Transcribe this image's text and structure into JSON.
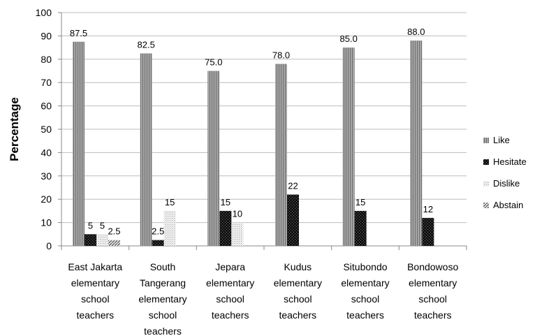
{
  "chart_data": {
    "type": "bar",
    "title": "",
    "xlabel": "",
    "ylabel": "Percentage",
    "ylim": [
      0,
      100
    ],
    "yticks": [
      0,
      10,
      20,
      30,
      40,
      50,
      60,
      70,
      80,
      90,
      100
    ],
    "grid": "horizontal",
    "legend_position": "right",
    "categories": [
      [
        "East Jakarta",
        "elementary",
        "school",
        "teachers"
      ],
      [
        "South",
        "Tangerang",
        "elementary",
        "school",
        "teachers"
      ],
      [
        "Jepara",
        "elementary",
        "school",
        "teachers"
      ],
      [
        "Kudus",
        "elementary",
        "school",
        "teachers"
      ],
      [
        "Situbondo",
        "elementary",
        "school",
        "teachers"
      ],
      [
        "Bondowoso",
        "elementary",
        "school",
        "teachers"
      ]
    ],
    "series": [
      {
        "name": "Like",
        "color": "#8c8c8c",
        "pattern": "fine-stripe",
        "values": [
          87.5,
          82.5,
          75.0,
          78.0,
          85.0,
          88.0
        ],
        "labels": [
          "87.5",
          "82.5",
          "75.0",
          "78.0",
          "85.0",
          "88.0"
        ]
      },
      {
        "name": "Hesitate",
        "color": "#1a1a1a",
        "pattern": "checker",
        "values": [
          5,
          2.5,
          15,
          22,
          15,
          12
        ],
        "labels": [
          "5",
          "2.5",
          "15",
          "22",
          "15",
          "12"
        ]
      },
      {
        "name": "Dislike",
        "color": "#e0e0e0",
        "pattern": "dots",
        "values": [
          5,
          15,
          10,
          0,
          0,
          0
        ],
        "labels": [
          "5",
          "15",
          "10",
          "",
          "",
          ""
        ]
      },
      {
        "name": "Abstain",
        "color": "#9a9a9a",
        "pattern": "diagonal",
        "values": [
          2.5,
          0,
          0,
          0,
          0,
          0
        ],
        "labels": [
          "2.5",
          "",
          "",
          "",
          "",
          ""
        ]
      }
    ]
  }
}
